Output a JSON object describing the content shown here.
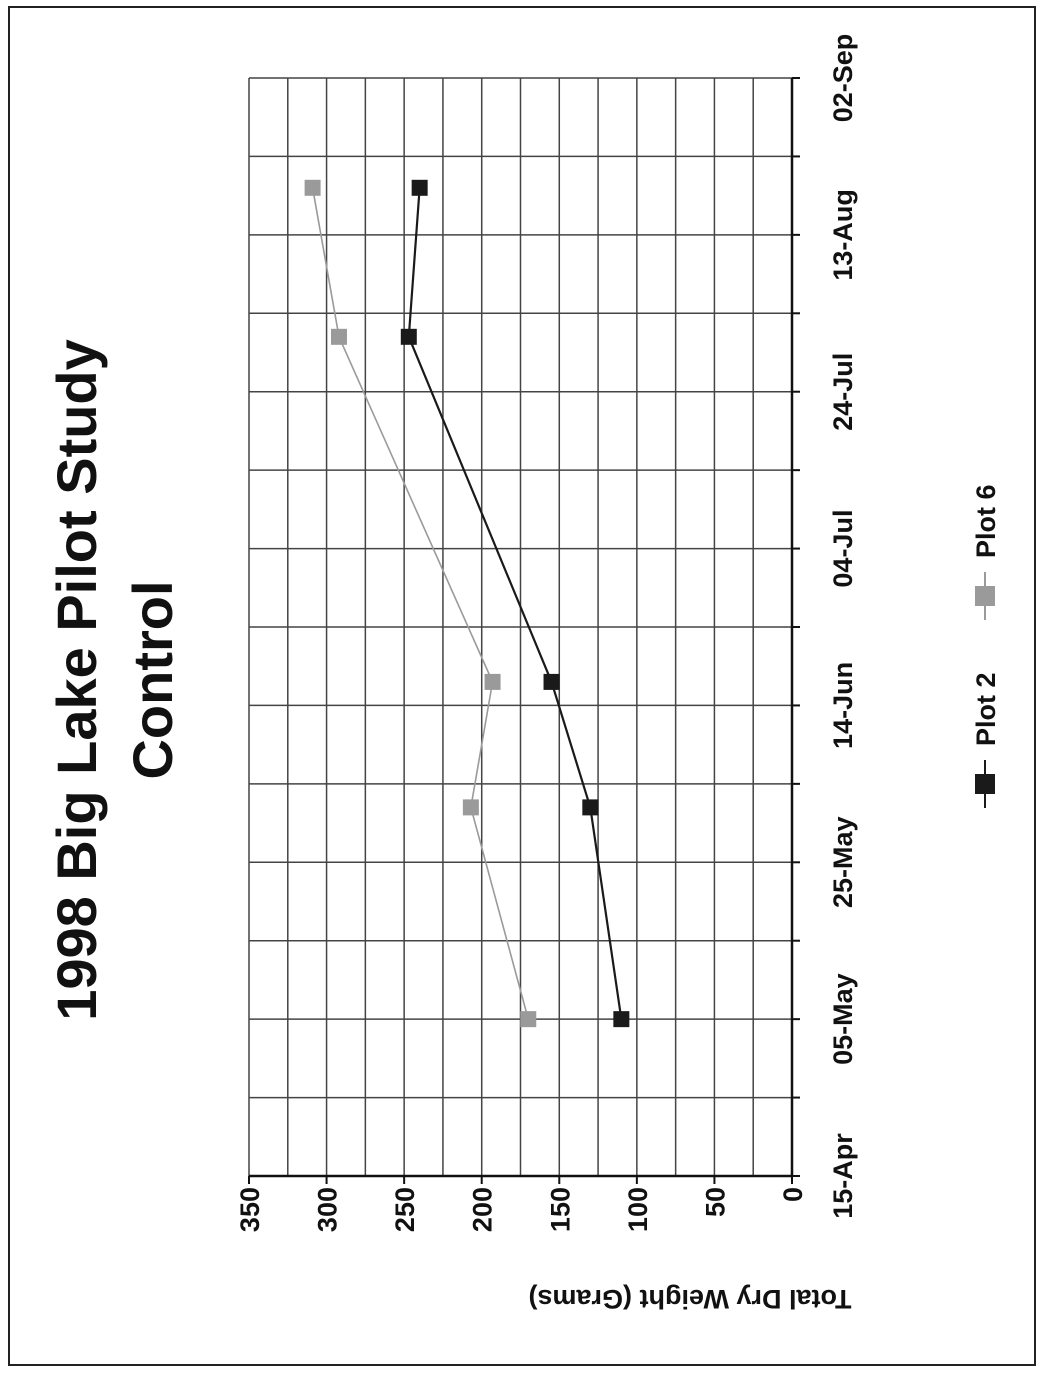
{
  "chart_data": {
    "type": "line",
    "title": "1998 Big Lake Pilot Study",
    "subtitle": "Control",
    "ylabel": "Total Dry Weight (Grams)",
    "xlabel": "",
    "x_ticks": [
      "15-Apr",
      "05-May",
      "25-May",
      "14-Jun",
      "04-Jul",
      "24-Jul",
      "13-Aug",
      "02-Sep"
    ],
    "x_range": [
      "1998-04-15",
      "1998-09-02"
    ],
    "ylim": [
      0,
      350
    ],
    "y_ticks": [
      0,
      50,
      100,
      150,
      200,
      250,
      300,
      350
    ],
    "grid": true,
    "legend_position": "bottom",
    "series": [
      {
        "name": "Plot 2",
        "color": "#1a1a1a",
        "marker": "square",
        "points": [
          {
            "x": "1998-05-05",
            "y": 110
          },
          {
            "x": "1998-06-01",
            "y": 130
          },
          {
            "x": "1998-06-17",
            "y": 155
          },
          {
            "x": "1998-07-31",
            "y": 247
          },
          {
            "x": "1998-08-19",
            "y": 240
          }
        ]
      },
      {
        "name": "Plot 6",
        "color": "#9a9a9a",
        "marker": "square",
        "points": [
          {
            "x": "1998-05-05",
            "y": 170
          },
          {
            "x": "1998-06-01",
            "y": 207
          },
          {
            "x": "1998-06-17",
            "y": 193
          },
          {
            "x": "1998-07-31",
            "y": 292
          },
          {
            "x": "1998-08-19",
            "y": 309
          }
        ]
      }
    ]
  }
}
